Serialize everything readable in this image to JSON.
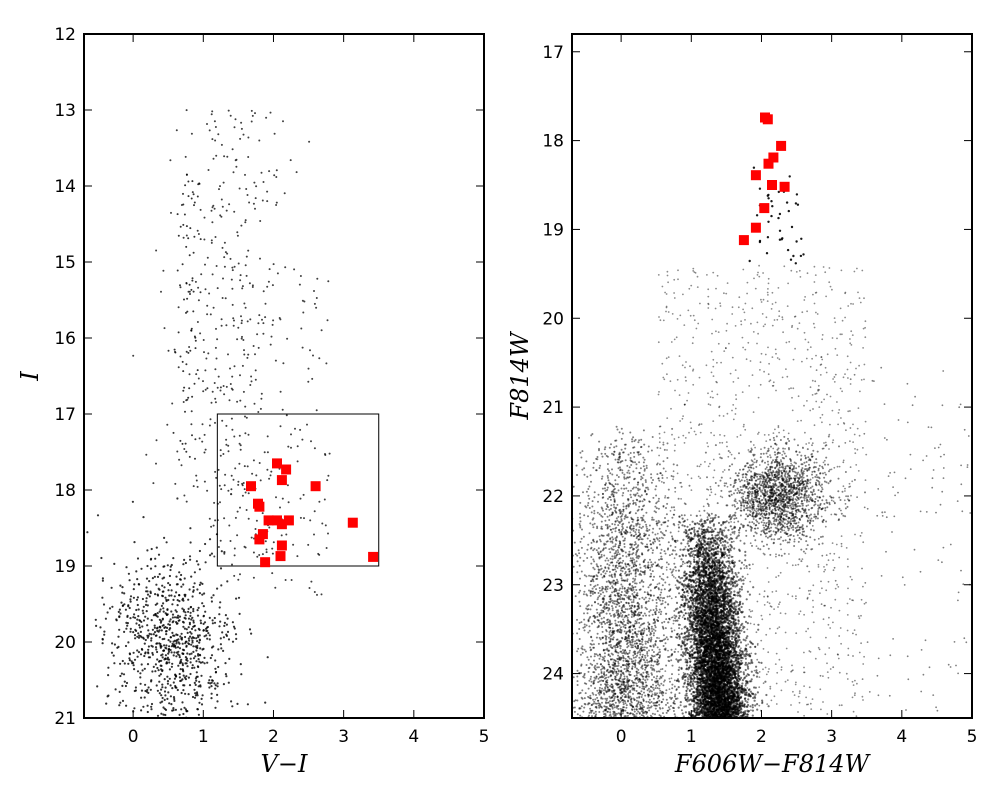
{
  "chart_data": [
    {
      "type": "scatter",
      "xlabel": "V−I",
      "ylabel": "I",
      "xlim": [
        -0.7,
        5
      ],
      "ylim": [
        21,
        12
      ],
      "y_inverted": true,
      "xticks": [
        "0",
        "1",
        "2",
        "3",
        "4",
        "5"
      ],
      "yticks": [
        "12",
        "13",
        "14",
        "15",
        "16",
        "17",
        "18",
        "19",
        "20",
        "21"
      ],
      "grid": false,
      "legend": "none",
      "selection_box": {
        "x": [
          1.2,
          3.5
        ],
        "y": [
          17.0,
          19.0
        ]
      },
      "series": [
        {
          "marker": "square",
          "color": "#ff0000",
          "x": [
            2.05,
            2.18,
            2.12,
            1.68,
            1.78,
            1.8,
            2.6,
            1.93,
            2.05,
            2.12,
            2.22,
            3.13,
            1.85,
            1.8,
            2.12,
            3.42,
            2.1,
            1.88
          ],
          "y": [
            17.65,
            17.73,
            17.87,
            17.95,
            18.18,
            18.22,
            17.95,
            18.4,
            18.4,
            18.45,
            18.4,
            18.43,
            18.58,
            18.65,
            18.73,
            18.88,
            18.87,
            18.95
          ]
        }
      ],
      "background_points": "dense cloud of small black dots: red giant branch (x 0.6–2.6, I 12.8–19) over main sequence / turnoff (x -0.5–2, I 18–21)"
    },
    {
      "type": "scatter",
      "xlabel": "F606W−F814W",
      "ylabel": "F814W",
      "xlim": [
        -0.7,
        5
      ],
      "ylim": [
        24.5,
        16.8
      ],
      "y_inverted": true,
      "xticks": [
        "0",
        "1",
        "2",
        "3",
        "4",
        "5"
      ],
      "yticks": [
        "17",
        "18",
        "19",
        "20",
        "21",
        "22",
        "23",
        "24"
      ],
      "grid": false,
      "legend": "none",
      "series": [
        {
          "marker": "square",
          "color": "#ff0000",
          "x": [
            2.05,
            2.09,
            2.28,
            2.17,
            2.1,
            1.92,
            2.15,
            2.33,
            2.04,
            1.92,
            1.75
          ],
          "y": [
            17.74,
            17.76,
            18.06,
            18.19,
            18.26,
            18.39,
            18.5,
            18.52,
            18.76,
            18.98,
            19.12
          ]
        }
      ],
      "background_points": "very dense black cloud: main sequence (x 0.9–1.8, F814W 22–24.5) with broad field spread (x -0.5–3.5), red clump near x 2–2.8 at F814W ~22"
    }
  ]
}
